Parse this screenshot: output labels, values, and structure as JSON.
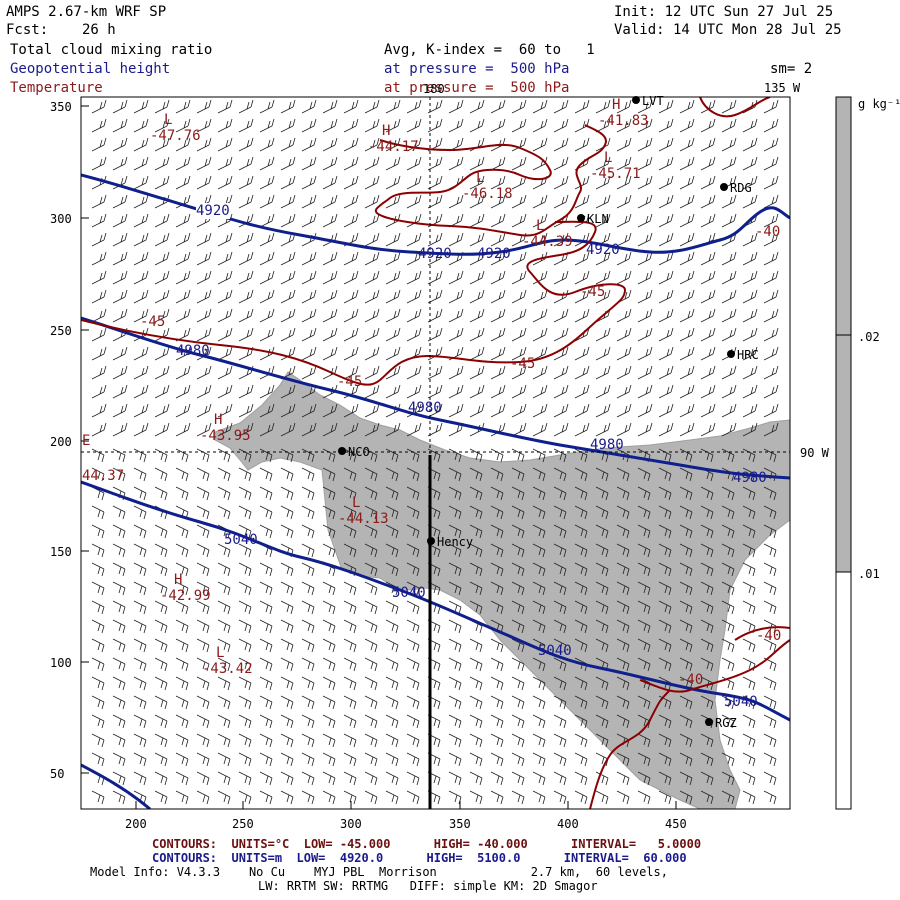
{
  "header": {
    "model_title": "AMPS 2.67-km WRF SP",
    "forecast_label": "Fcst:",
    "forecast_hours": "26 h",
    "init": "Init: 12 UTC Sun 27 Jul 25",
    "valid": "Valid: 14 UTC Mon 28 Jul 25",
    "field1": "Total cloud mixing ratio",
    "field2": "Geopotential height",
    "field3": "Temperature",
    "avg": "Avg, K-index =  60 to   1",
    "pressure1": "at pressure =  500 hPa",
    "pressure2": "at pressure =  500 hPa",
    "smoothing": "sm= 2"
  },
  "map": {
    "x_ticks": [
      "200",
      "250",
      "300",
      "350",
      "400",
      "450"
    ],
    "y_ticks": [
      "350",
      "300",
      "250",
      "200",
      "150",
      "100",
      "50"
    ],
    "lon_top": "180",
    "lon_right_top": "135 W",
    "lon_right_mid": "90 W",
    "lat_mark": "E",
    "stations": [
      "LVT",
      "RDG",
      "KLN",
      "HRC",
      "NCO",
      "Hency",
      "RGZ"
    ],
    "height_labels": [
      "4920",
      "4920",
      "4920",
      "4920",
      "4980",
      "4980",
      "4980",
      "4980",
      "5040",
      "5040",
      "5040",
      "5040"
    ],
    "temp_labels": [
      "-45",
      "-45",
      "-45",
      "-45",
      "-40",
      "-40",
      "-40"
    ],
    "extrema": [
      {
        "type": "L",
        "value": "-47.76"
      },
      {
        "type": "H",
        "value": "-44.17"
      },
      {
        "type": "L",
        "value": "-46.18"
      },
      {
        "type": "H",
        "value": "-41.83"
      },
      {
        "type": "L",
        "value": "-45.71"
      },
      {
        "type": "L",
        "value": "-44.39"
      },
      {
        "type": "H",
        "value": "-43.95"
      },
      {
        "type": "",
        "value": "44.37"
      },
      {
        "type": "L",
        "value": "-44.13"
      },
      {
        "type": "H",
        "value": "-42.99"
      },
      {
        "type": "L",
        "value": "-43.42"
      }
    ]
  },
  "colorbar": {
    "units": "g kg⁻¹",
    "labels": [
      ".02",
      ".01"
    ],
    "fill_color": "#b4b4b4"
  },
  "footer": {
    "temp_contours": "CONTOURS:  UNITS=°C  LOW= -45.000      HIGH= -40.000      INTERVAL=   5.0000",
    "height_contours": "CONTOURS:  UNITS=m  LOW=  4920.0      HIGH=  5100.0      INTERVAL=  60.000",
    "model_info": "Model Info: V4.3.3    No Cu    MYJ PBL  Morrison             2.7 km,  60 levels,",
    "model_info2": "LW: RRTM SW: RRTMG   DIFF: simple KM: 2D Smagor"
  },
  "colors": {
    "height_contour": "#0f1f8c",
    "temp_contour": "#8b0000",
    "cloud_fill": "#b4b4b4"
  }
}
